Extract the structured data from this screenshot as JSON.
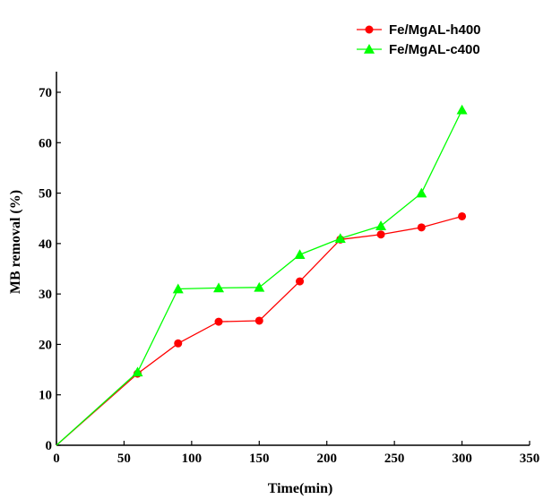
{
  "chart_data": {
    "type": "line",
    "title": "",
    "xlabel": "Time(min)",
    "ylabel": "MB removal  (%)",
    "xlim": [
      0,
      350
    ],
    "ylim": [
      0,
      75
    ],
    "xticks": [
      0,
      50,
      100,
      150,
      200,
      250,
      300,
      350
    ],
    "yticks": [
      0,
      10,
      20,
      30,
      40,
      50,
      60,
      70
    ],
    "grid": false,
    "legend_position": "top-right",
    "series": [
      {
        "name": "Fe/MgAL-h400",
        "color": "#ff0000",
        "marker": "circle",
        "x": [
          0,
          60,
          90,
          120,
          150,
          180,
          210,
          240,
          270,
          300
        ],
        "y": [
          0,
          14.2,
          20.2,
          24.5,
          24.7,
          32.5,
          40.8,
          41.8,
          43.2,
          45.4
        ]
      },
      {
        "name": "Fe/MgAL-c400",
        "color": "#00ff00",
        "marker": "triangle",
        "x": [
          0,
          60,
          90,
          120,
          150,
          180,
          210,
          240,
          270,
          300
        ],
        "y": [
          0,
          14.5,
          31.0,
          31.2,
          31.3,
          37.8,
          41.0,
          43.5,
          50.0,
          66.5
        ]
      }
    ]
  }
}
